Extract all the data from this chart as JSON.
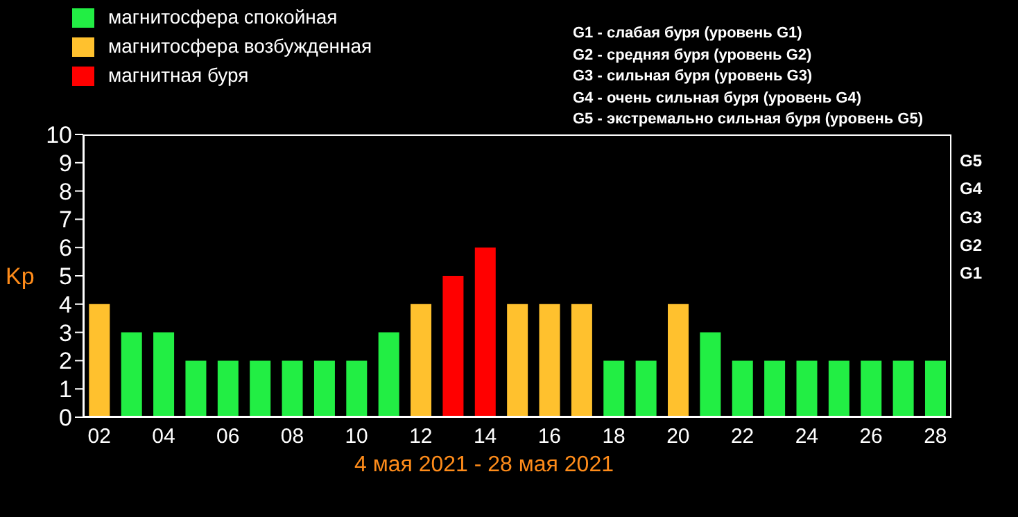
{
  "chart_data": {
    "type": "bar",
    "stacked": true,
    "legend": "top left",
    "xlabel": "4 мая 2021 - 28 мая 2021",
    "ylabel": "Kp",
    "categories": [
      "02",
      null,
      "04",
      null,
      "06",
      null,
      "08",
      null,
      "10",
      null,
      "12",
      null,
      "14",
      null,
      "16",
      null,
      "18",
      null,
      "20",
      null,
      "22",
      null,
      "24",
      null,
      "26",
      null,
      "28"
    ],
    "series": [
      {
        "name": "магнитосфера спокойная",
        "color": "#22ee44",
        "values": [
          null,
          3,
          3,
          2,
          2,
          2,
          2,
          2,
          2,
          3,
          null,
          null,
          null,
          null,
          null,
          null,
          2,
          2,
          null,
          3,
          2,
          2,
          2,
          2,
          2,
          2,
          2
        ]
      },
      {
        "name": "магнитосфера возбужденная",
        "color": "#ffc12e",
        "values": [
          4,
          null,
          null,
          null,
          null,
          null,
          null,
          null,
          null,
          null,
          4,
          null,
          null,
          4,
          4,
          4,
          null,
          null,
          4,
          null,
          null,
          null,
          null,
          null,
          null,
          null,
          null
        ]
      },
      {
        "name": "магнитная буря",
        "color": "#ff0000",
        "values": [
          null,
          null,
          null,
          null,
          null,
          null,
          null,
          null,
          null,
          null,
          null,
          5,
          6,
          null,
          null,
          null,
          null,
          null,
          null,
          null,
          null,
          null,
          null,
          null,
          null,
          null,
          null
        ]
      }
    ],
    "ylim": [
      0,
      10
    ],
    "yticks": [
      0,
      1,
      2,
      3,
      4,
      5,
      6,
      7,
      8,
      9,
      10
    ],
    "annotations": [
      "G1 - слабая буря (уровень G1)",
      "G2 - средняя буря (уровень G2)",
      "G3 - сильная буря (уровень G3)",
      "G4 - очень сильная буря (уровень G4)",
      "G5 - экстремально сильная буря (уровень G5)",
      "G1",
      "G2",
      "G3",
      "G4",
      "G5"
    ]
  }
}
